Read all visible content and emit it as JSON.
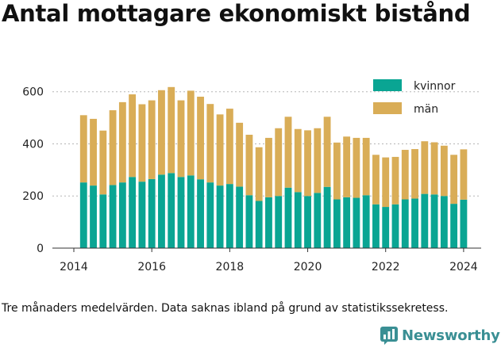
{
  "title": "Antal mottagare ekonomiskt bistånd",
  "footnote": "Tre månaders medelvärden. Data saknas ibland på grund av statistikssekretess.",
  "brand": {
    "name": "Newsworthy",
    "icon": "newsworthy-logo-icon"
  },
  "colors": {
    "kvinnor": "#0aa593",
    "man": "#d9ad57"
  },
  "chart_data": {
    "type": "bar",
    "stacked": true,
    "legend_position": "top-right",
    "grid": true,
    "ylim": [
      0,
      660
    ],
    "xlim": [
      2013.45,
      2024.45
    ],
    "y_ticks": [
      0,
      200,
      400,
      600
    ],
    "x_ticks": [
      2014,
      2016,
      2018,
      2020,
      2022,
      2024
    ],
    "x": [
      2014.25,
      2014.5,
      2014.75,
      2015.0,
      2015.25,
      2015.5,
      2015.75,
      2016.0,
      2016.25,
      2016.5,
      2016.75,
      2017.0,
      2017.25,
      2017.5,
      2017.75,
      2018.0,
      2018.25,
      2018.5,
      2018.75,
      2019.0,
      2019.25,
      2019.5,
      2019.75,
      2020.0,
      2020.25,
      2020.5,
      2020.75,
      2021.0,
      2021.25,
      2021.5,
      2021.75,
      2022.0,
      2022.25,
      2022.5,
      2022.75,
      2023.0,
      2023.25,
      2023.5,
      2023.75,
      2024.0
    ],
    "series": [
      {
        "name": "kvinnor",
        "values": [
          252,
          240,
          206,
          242,
          252,
          273,
          255,
          265,
          282,
          288,
          273,
          279,
          264,
          252,
          240,
          246,
          236,
          203,
          181,
          195,
          200,
          232,
          215,
          200,
          212,
          235,
          187,
          195,
          193,
          203,
          168,
          158,
          168,
          187,
          190,
          208,
          206,
          200,
          170,
          186
        ]
      },
      {
        "name": "män",
        "values": [
          258,
          256,
          245,
          287,
          308,
          317,
          297,
          302,
          324,
          330,
          294,
          325,
          317,
          301,
          273,
          289,
          245,
          232,
          206,
          228,
          260,
          272,
          242,
          252,
          248,
          269,
          218,
          233,
          230,
          220,
          190,
          190,
          182,
          190,
          190,
          202,
          200,
          193,
          188,
          193
        ]
      }
    ]
  }
}
